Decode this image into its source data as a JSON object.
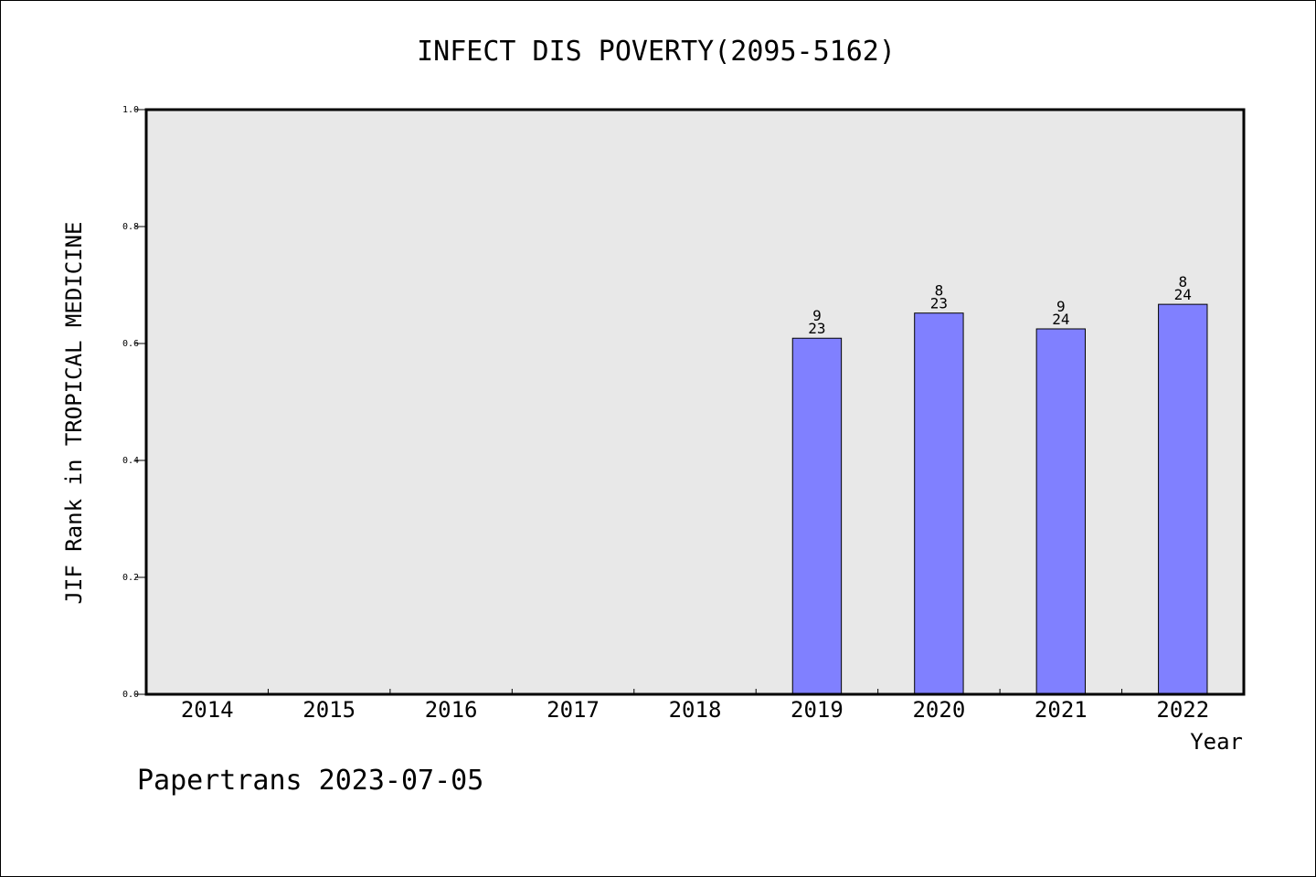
{
  "chart_data": {
    "type": "bar",
    "title": "INFECT DIS POVERTY(2095-5162)",
    "xlabel": "Year",
    "ylabel": "JIF Rank in TROPICAL MEDICINE",
    "categories": [
      "2014",
      "2015",
      "2016",
      "2017",
      "2018",
      "2019",
      "2020",
      "2021",
      "2022"
    ],
    "values": [
      null,
      null,
      null,
      null,
      null,
      0.609,
      0.652,
      0.625,
      0.667
    ],
    "bar_labels": [
      null,
      null,
      null,
      null,
      null,
      {
        "rank": "9",
        "total": "23"
      },
      {
        "rank": "8",
        "total": "23"
      },
      {
        "rank": "9",
        "total": "24"
      },
      {
        "rank": "8",
        "total": "24"
      }
    ],
    "ylim": [
      0,
      1.0
    ],
    "yticks": [
      "0.0",
      "0.2",
      "0.4",
      "0.6",
      "0.8",
      "1.0"
    ],
    "grid": false,
    "colors": {
      "bar": "#8080ff",
      "plot_background": "#e8e8e8",
      "axis": "#000000"
    }
  },
  "footer": {
    "text": "Papertrans 2023-07-05"
  }
}
